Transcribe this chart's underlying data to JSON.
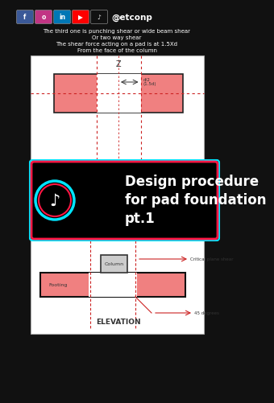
{
  "bg_color": "#111111",
  "white_bg": "#ffffff",
  "pink_fill": "#f08080",
  "red_dash": "#cc2222",
  "title_text": "Design procedure\nfor pad foundation\npt.1",
  "header_line1": "The third one is punching shear or wide beam shear",
  "header_line2": "Or two way shear",
  "header_line3": "The shear force acting on a pad is at 1.5Xd",
  "header_line4": "From the face of the column",
  "social_handle": "@etconp",
  "label_z": "Z",
  "label_d2": "d/2\n(1.5d)",
  "label_column": "Column",
  "label_footing": "Footing",
  "label_elevation": "ELEVATION",
  "label_critical": "Critical plane shear",
  "label_45": "45 degrees",
  "icon_fb": "#3b5998",
  "icon_ig": "#c13584",
  "icon_li": "#0077b5",
  "icon_yt": "#ff0000",
  "icon_tk": "#111111",
  "tiktok_cyan": "#00e5ff",
  "tiktok_red": "#ff1744"
}
